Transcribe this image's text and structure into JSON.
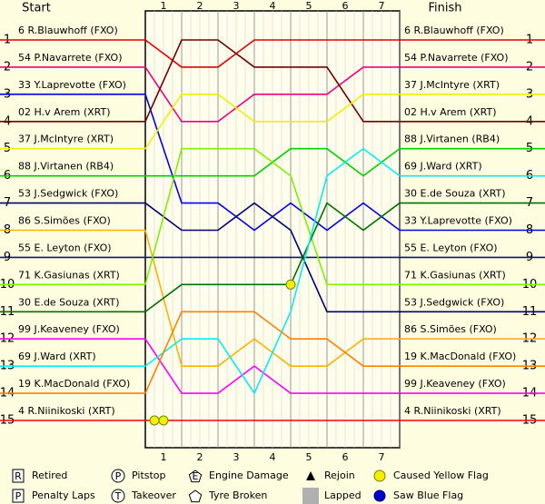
{
  "chart_data": {
    "type": "lap-chart",
    "start_label": "Start",
    "finish_label": "Finish",
    "x": [
      0,
      1,
      2,
      3,
      4,
      5,
      6,
      7
    ],
    "xlim": [
      0,
      7
    ],
    "xticks": [
      1,
      2,
      3,
      4,
      5,
      6,
      7
    ],
    "ylim": [
      1,
      15
    ],
    "y_inverted": true,
    "yticks": [
      1,
      2,
      3,
      4,
      5,
      6,
      7,
      8,
      9,
      10,
      11,
      12,
      13,
      14,
      15
    ],
    "series": [
      {
        "name": "6 R.Blauwhoff (FXO)",
        "color": "#e00000",
        "values": [
          1,
          2,
          2,
          1,
          1,
          1,
          1,
          1
        ]
      },
      {
        "name": "54 P.Navarrete (FXO)",
        "color": "#f0007a",
        "values": [
          2,
          4,
          4,
          3,
          3,
          3,
          2,
          2
        ]
      },
      {
        "name": "33 Y.Laprevotte (FXO)",
        "color": "#0000f0",
        "values": [
          3,
          7,
          7,
          8,
          7,
          8,
          7,
          8
        ]
      },
      {
        "name": "02 H.v Arem (XRT)",
        "color": "#700000",
        "values": [
          4,
          1,
          1,
          2,
          2,
          2,
          4,
          4
        ]
      },
      {
        "name": "37 J.McIntyre (XRT)",
        "color": "#f0f000",
        "values": [
          5,
          3,
          3,
          4,
          4,
          4,
          3,
          3
        ]
      },
      {
        "name": "88 J.Virtanen (RB4)",
        "color": "#00d000",
        "values": [
          6,
          6,
          6,
          6,
          5,
          5,
          6,
          5
        ]
      },
      {
        "name": "53 J.Sedgwick (FXO)",
        "color": "#000070",
        "values": [
          7,
          8,
          8,
          7,
          8,
          11,
          11,
          11
        ]
      },
      {
        "name": "86 S.Simões (FXO)",
        "color": "#ffb000",
        "values": [
          8,
          13,
          13,
          12,
          13,
          13,
          12,
          12
        ]
      },
      {
        "name": "55 E. Leyton (FXO)",
        "color": "#101080",
        "values": [
          9,
          9,
          9,
          9,
          9,
          9,
          9,
          9
        ]
      },
      {
        "name": "71 K.Gasiunas (XRT)",
        "color": "#80f000",
        "values": [
          10,
          5,
          5,
          5,
          6,
          10,
          10,
          10
        ]
      },
      {
        "name": "30 E.de Souza (XRT)",
        "color": "#007000",
        "values": [
          11,
          10,
          10,
          10,
          10,
          7,
          8,
          7
        ]
      },
      {
        "name": "99 J.Keaveney (FXO)",
        "color": "#ff00ff",
        "values": [
          12,
          14,
          14,
          13,
          14,
          14,
          14,
          14
        ]
      },
      {
        "name": "69 J.Ward (XRT)",
        "color": "#00f0f0",
        "values": [
          13,
          12,
          12,
          14,
          11,
          6,
          5,
          6
        ]
      },
      {
        "name": "19 K.MacDonald (FXO)",
        "color": "#ff8000",
        "values": [
          14,
          11,
          11,
          11,
          12,
          12,
          13,
          13
        ]
      },
      {
        "name": "4 R.Niinikoski (XRT)",
        "color": "#ff0000",
        "values": [
          15,
          15,
          15,
          15,
          15,
          15,
          15,
          15
        ]
      }
    ],
    "legend": [
      {
        "symbol": "R",
        "label": "Retired"
      },
      {
        "symbol": "P",
        "label": "Penalty Laps"
      },
      {
        "symbol": "P",
        "label": "Pitstop"
      },
      {
        "symbol": "T",
        "label": "Takeover"
      },
      {
        "symbol": "E",
        "label": "Engine Damage"
      },
      {
        "label": "Tyre Broken"
      },
      {
        "label": "Rejoin"
      },
      {
        "label": "Lapped"
      },
      {
        "label": "Caused Yellow Flag"
      },
      {
        "label": "Saw Blue Flag"
      }
    ]
  }
}
